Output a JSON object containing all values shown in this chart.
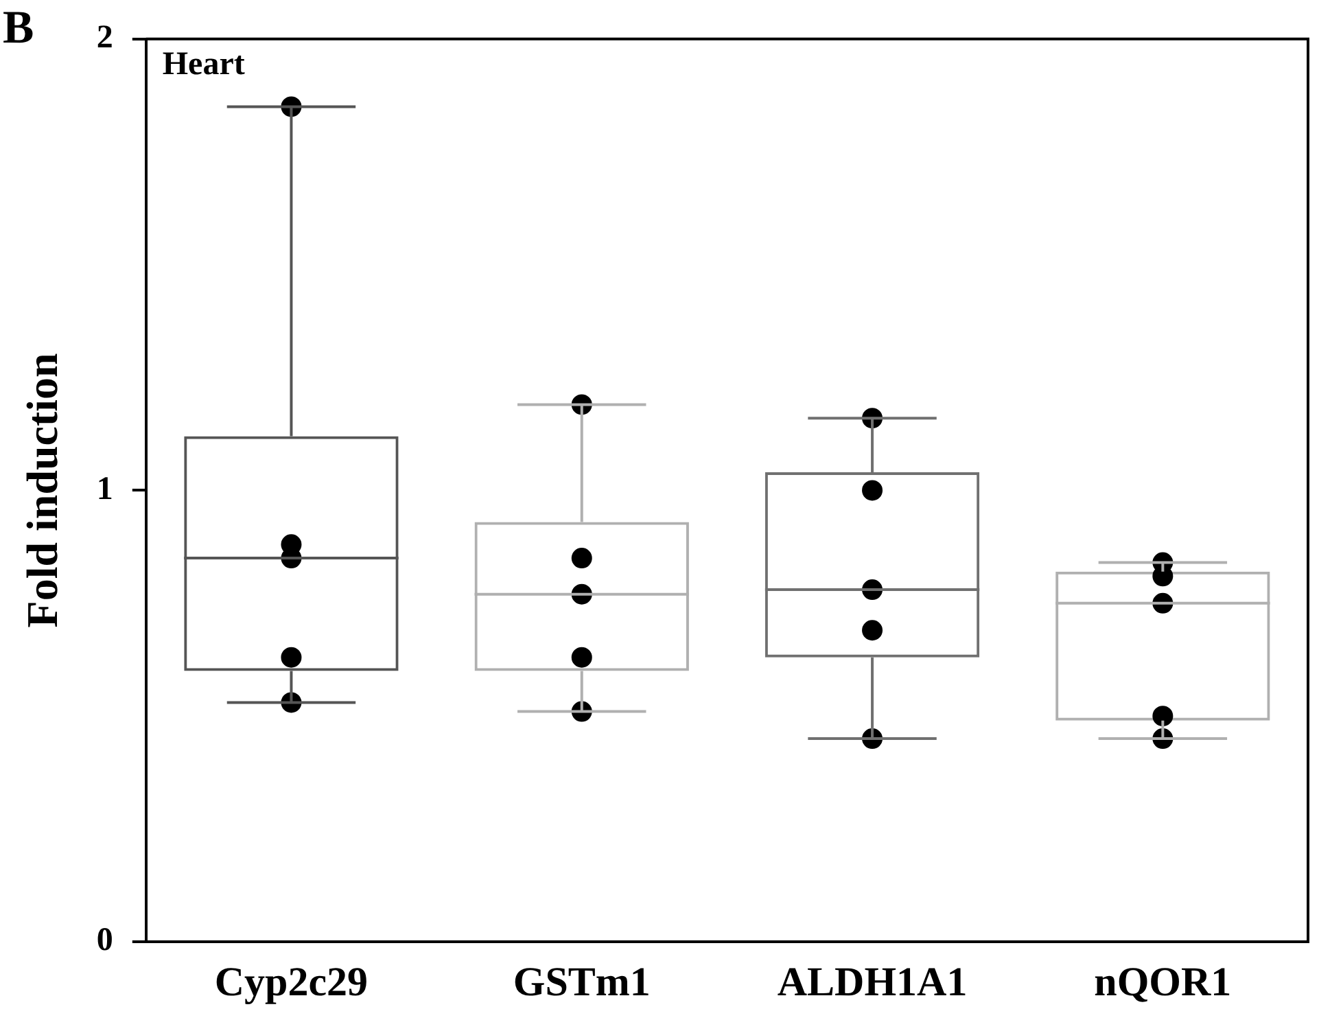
{
  "chart_data": {
    "type": "box",
    "ylabel": "Fold induction",
    "annotations": [
      "B",
      "Heart"
    ],
    "categories": [
      "Cyp2c29",
      "GSTm1",
      "ALDH1A1",
      "nQOR1"
    ],
    "colors": [
      "#555555",
      "#b0b0b0",
      "#707070",
      "#b0b0b0"
    ],
    "boxes": [
      {
        "low": 0.53,
        "q1": 0.6,
        "median": 0.85,
        "q3": 1.12,
        "high": 1.85
      },
      {
        "low": 0.51,
        "q1": 0.6,
        "median": 0.77,
        "q3": 0.93,
        "high": 1.19
      },
      {
        "low": 0.45,
        "q1": 0.63,
        "median": 0.78,
        "q3": 1.04,
        "high": 1.16
      },
      {
        "low": 0.45,
        "q1": 0.49,
        "median": 0.75,
        "q3": 0.82,
        "high": 0.84
      }
    ],
    "series": [
      {
        "type": "scatter",
        "color": "#000000",
        "x": [
          "Cyp2c29",
          "Cyp2c29",
          "Cyp2c29",
          "Cyp2c29",
          "Cyp2c29",
          "GSTm1",
          "GSTm1",
          "GSTm1",
          "GSTm1",
          "GSTm1",
          "ALDH1A1",
          "ALDH1A1",
          "ALDH1A1",
          "ALDH1A1",
          "ALDH1A1",
          "nQOR1",
          "nQOR1",
          "nQOR1",
          "nQOR1",
          "nQOR1"
        ],
        "values": [
          1.85,
          0.88,
          0.85,
          0.63,
          0.53,
          1.19,
          0.85,
          0.77,
          0.63,
          0.51,
          1.16,
          1.0,
          0.78,
          0.69,
          0.45,
          0.84,
          0.81,
          0.75,
          0.5,
          0.45
        ]
      }
    ],
    "marker": "circle",
    "ylim": [
      0,
      2
    ],
    "yticks": [
      0,
      1,
      2
    ],
    "grid": false,
    "legend": false
  }
}
